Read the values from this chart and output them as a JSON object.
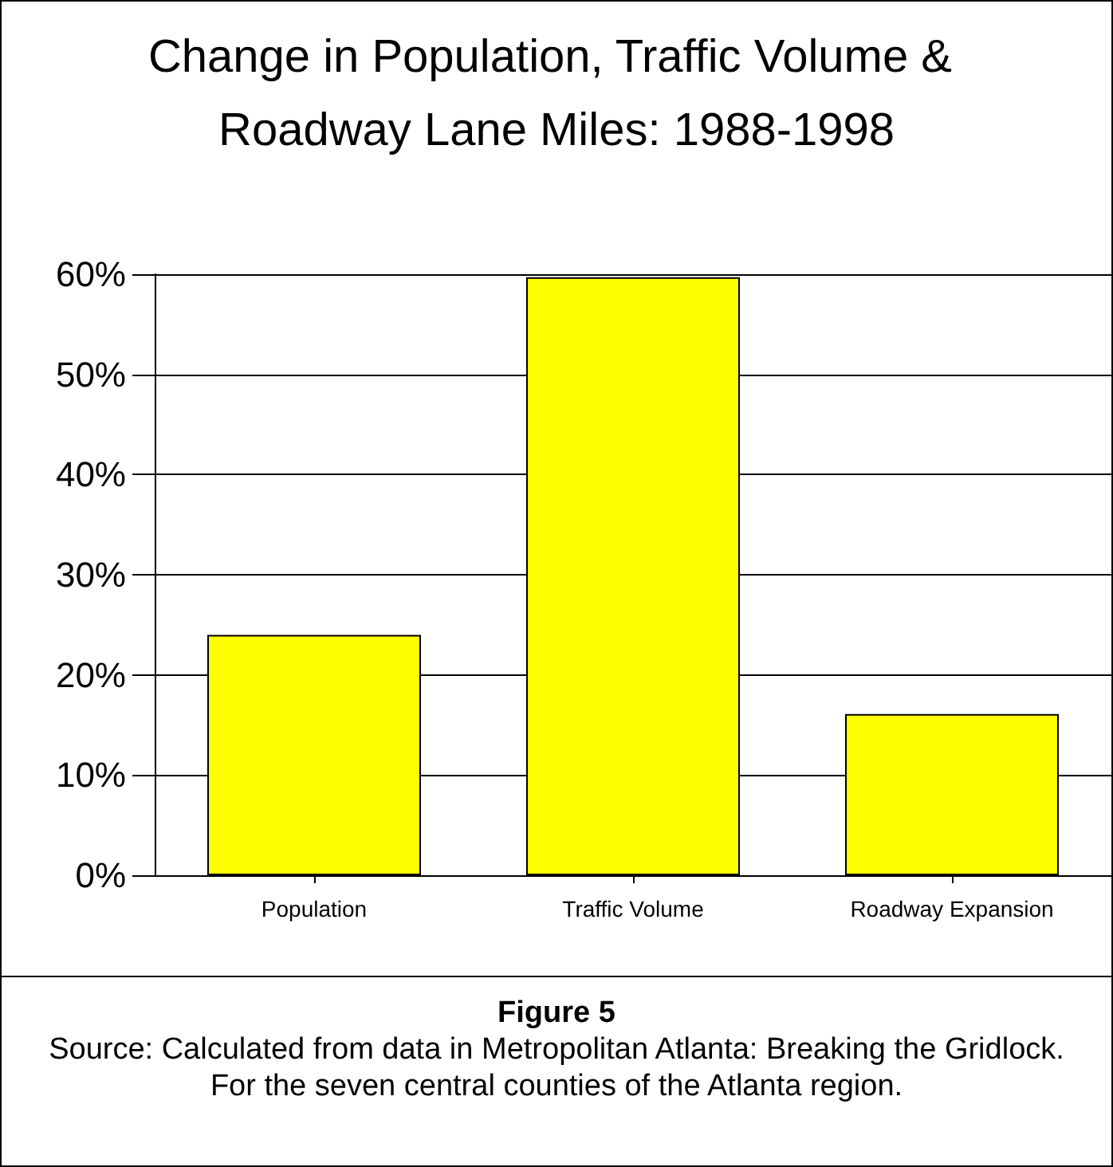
{
  "chart_data": {
    "type": "bar",
    "title": "Change in Population, Traffic Volume & Roadway Lane Miles: 1988-1998",
    "categories": [
      "Population",
      "Traffic Volume",
      "Roadway Expansion"
    ],
    "values": [
      24,
      59.7,
      16.1
    ],
    "color": "#ffff00",
    "ylim": [
      0,
      60
    ],
    "yticks": [
      {
        "value": 0,
        "label": "0%"
      },
      {
        "value": 10,
        "label": "10%"
      },
      {
        "value": 20,
        "label": "20%"
      },
      {
        "value": 30,
        "label": "30%"
      },
      {
        "value": 40,
        "label": "40%"
      },
      {
        "value": 50,
        "label": "50%"
      },
      {
        "value": 60,
        "label": "60%"
      }
    ],
    "grid": "y",
    "annotations": [
      "Figure 5",
      "Source: Calculated from data in Metropolitan Atlanta: Breaking the Gridlock. For the seven central counties of the Atlanta region."
    ]
  }
}
